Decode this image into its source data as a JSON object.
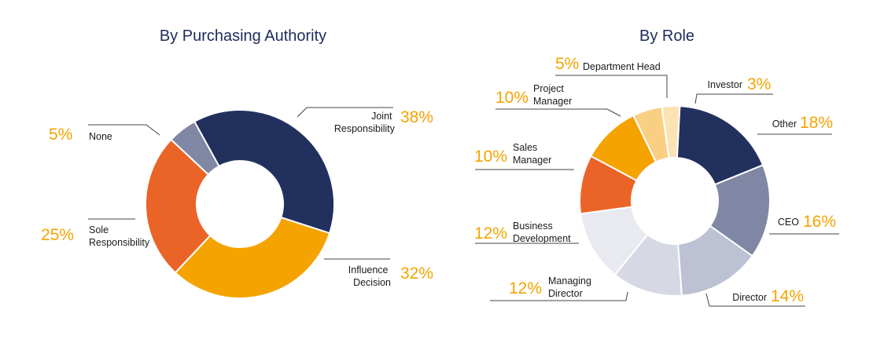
{
  "chart_data": [
    {
      "type": "pie",
      "title": "By Purchasing Authority",
      "unit": "%",
      "slices": [
        {
          "label": "Joint Responsibility",
          "value": 38,
          "display": "38%",
          "color": "#22305e"
        },
        {
          "label": "Influence Decision",
          "value": 32,
          "display": "32%",
          "color": "#f5a300"
        },
        {
          "label": "Sole Responsibility",
          "value": 25,
          "display": "25%",
          "color": "#ea6427"
        },
        {
          "label": "None",
          "value": 5,
          "display": "5%",
          "color": "#7f87a4"
        }
      ]
    },
    {
      "type": "pie",
      "title": "By Role",
      "unit": "%",
      "slices": [
        {
          "label": "Other",
          "value": 18,
          "display": "18%",
          "color": "#22305e"
        },
        {
          "label": "CEO",
          "value": 16,
          "display": "16%",
          "color": "#7f87a4"
        },
        {
          "label": "Director",
          "value": 14,
          "display": "14%",
          "color": "#bcc1d3"
        },
        {
          "label": "Managing Director",
          "value": 12,
          "display": "12%",
          "color": "#d6d9e4"
        },
        {
          "label": "Business Development",
          "value": 12,
          "display": "12%",
          "color": "#e9eaf0"
        },
        {
          "label": "Sales Manager",
          "value": 10,
          "display": "10%",
          "color": "#ea6427"
        },
        {
          "label": "Project Manager",
          "value": 10,
          "display": "10%",
          "color": "#f5a300"
        },
        {
          "label": "Department Head",
          "value": 5,
          "display": "5%",
          "color": "#f9d083"
        },
        {
          "label": "Investor",
          "value": 3,
          "display": "3%",
          "color": "#fbe3b4"
        }
      ]
    }
  ]
}
